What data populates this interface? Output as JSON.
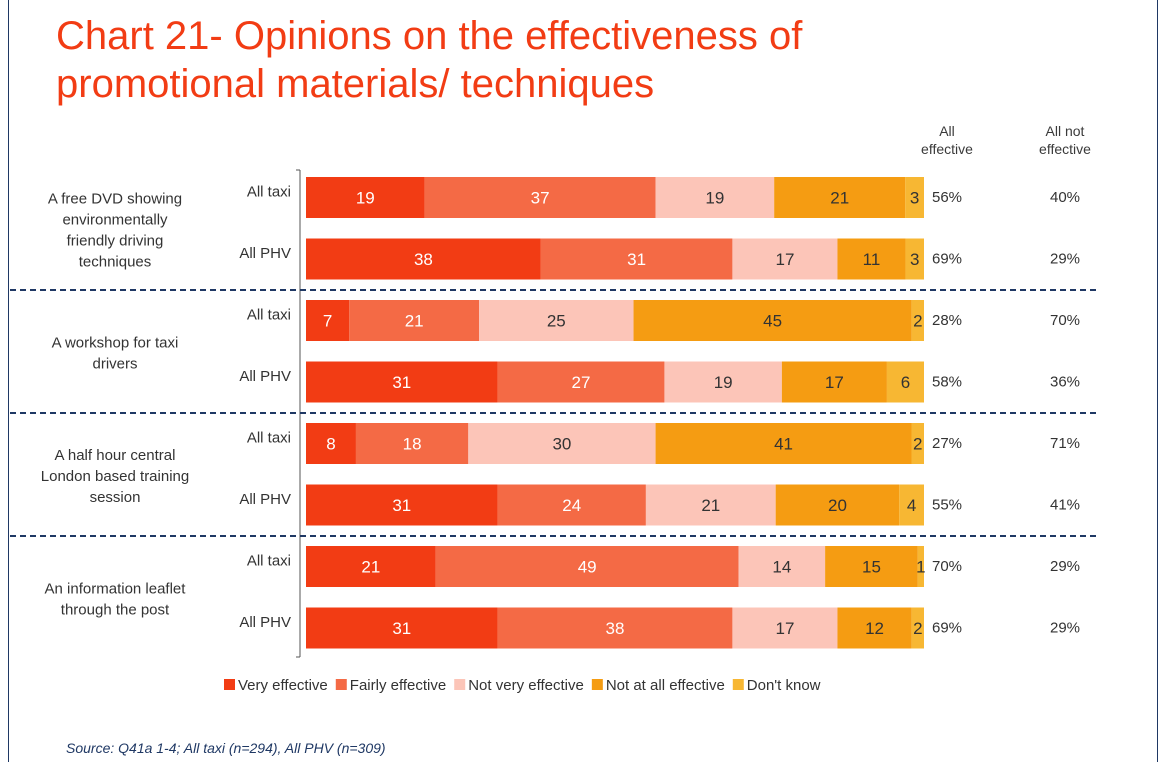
{
  "title": "Chart 21- Opinions on the effectiveness of promotional materials/ techniques",
  "column_headers": {
    "effective": [
      "All",
      "effective"
    ],
    "not_effective": [
      "All not",
      "effective"
    ]
  },
  "source": "Source: Q41a 1-4; All taxi (n=294), All PHV (n=309)",
  "chart_data": {
    "type": "bar",
    "orientation": "horizontal",
    "stacked": true,
    "groups": [
      {
        "label": [
          "A free DVD showing",
          "environmentally",
          "friendly driving",
          "techniques"
        ],
        "rows": [
          {
            "label": "All taxi",
            "values": [
              19,
              37,
              19,
              21,
              3
            ],
            "all_effective": "56%",
            "all_not_effective": "40%"
          },
          {
            "label": "All PHV",
            "values": [
              38,
              31,
              17,
              11,
              3
            ],
            "all_effective": "69%",
            "all_not_effective": "29%"
          }
        ]
      },
      {
        "label": [
          "A workshop for taxi",
          "drivers"
        ],
        "rows": [
          {
            "label": "All taxi",
            "values": [
              7,
              21,
              25,
              45,
              2
            ],
            "all_effective": "28%",
            "all_not_effective": "70%"
          },
          {
            "label": "All PHV",
            "values": [
              31,
              27,
              19,
              17,
              6
            ],
            "all_effective": "58%",
            "all_not_effective": "36%"
          }
        ]
      },
      {
        "label": [
          "A half hour central",
          "London based training",
          "session"
        ],
        "rows": [
          {
            "label": "All taxi",
            "values": [
              8,
              18,
              30,
              41,
              2
            ],
            "all_effective": "27%",
            "all_not_effective": "71%"
          },
          {
            "label": "All PHV",
            "values": [
              31,
              24,
              21,
              20,
              4
            ],
            "all_effective": "55%",
            "all_not_effective": "41%"
          }
        ]
      },
      {
        "label": [
          "An information leaflet",
          "through the post"
        ],
        "rows": [
          {
            "label": "All taxi",
            "values": [
              21,
              49,
              14,
              15,
              1
            ],
            "all_effective": "70%",
            "all_not_effective": "29%"
          },
          {
            "label": "All PHV",
            "values": [
              31,
              38,
              17,
              12,
              2
            ],
            "all_effective": "69%",
            "all_not_effective": "29%"
          }
        ]
      }
    ],
    "series": [
      {
        "name": "Very effective",
        "color": "#f23c14"
      },
      {
        "name": "Fairly effective",
        "color": "#f46a45"
      },
      {
        "name": "Not very effective",
        "color": "#fcc5b8"
      },
      {
        "name": "Not at all effective",
        "color": "#f59c12"
      },
      {
        "name": "Don't know",
        "color": "#f7b733"
      }
    ],
    "xlim": [
      0,
      100
    ],
    "grid": false,
    "legend_position": "bottom",
    "group_separator": "dashed",
    "separator_color": "#1f3864"
  }
}
